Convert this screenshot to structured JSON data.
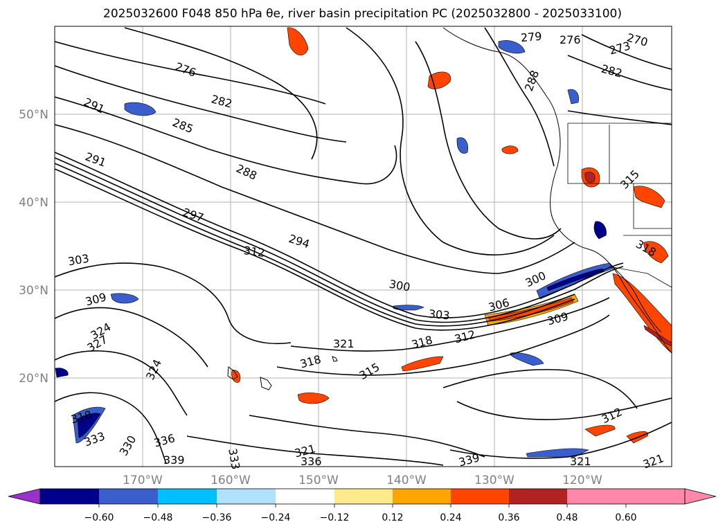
{
  "title": "2025032600 F048 850 hPa θe, river basin precipitation PC (2025032800 - 2025033100)",
  "lat_labels": [
    "50°N",
    "40°N",
    "30°N",
    "20°N"
  ],
  "lon_labels": [
    "170°W",
    "160°W",
    "150°W",
    "140°W",
    "130°W",
    "120°W"
  ],
  "contour_labels": [
    {
      "text": "276"
    },
    {
      "text": "279"
    },
    {
      "text": "276"
    },
    {
      "text": "273"
    },
    {
      "text": "270"
    },
    {
      "text": "282"
    },
    {
      "text": "288"
    },
    {
      "text": "291"
    },
    {
      "text": "285"
    },
    {
      "text": "282"
    },
    {
      "text": "291"
    },
    {
      "text": "288"
    },
    {
      "text": "297"
    },
    {
      "text": "294"
    },
    {
      "text": "312"
    },
    {
      "text": "303"
    },
    {
      "text": "300"
    },
    {
      "text": "300"
    },
    {
      "text": "309"
    },
    {
      "text": "306"
    },
    {
      "text": "303"
    },
    {
      "text": "309"
    },
    {
      "text": "321"
    },
    {
      "text": "318"
    },
    {
      "text": "312"
    },
    {
      "text": "324"
    },
    {
      "text": "327"
    },
    {
      "text": "318"
    },
    {
      "text": "315"
    },
    {
      "text": "324"
    },
    {
      "text": "315"
    },
    {
      "text": "318"
    },
    {
      "text": "318"
    },
    {
      "text": "333"
    },
    {
      "text": "330"
    },
    {
      "text": "336"
    },
    {
      "text": "339"
    },
    {
      "text": "333"
    },
    {
      "text": "321"
    },
    {
      "text": "336"
    },
    {
      "text": "339"
    },
    {
      "text": "312"
    },
    {
      "text": "321"
    },
    {
      "text": "321"
    }
  ],
  "colorbar": {
    "ticks": [
      "−0.60",
      "−0.48",
      "−0.36",
      "−0.24",
      "−0.12",
      "0.12",
      "0.24",
      "0.36",
      "0.48",
      "0.60"
    ],
    "colors": [
      "#9932cc",
      "#00008b",
      "#3a5fcd",
      "#00bfff",
      "#b0e2ff",
      "#ffffff",
      "#fdea8a",
      "#ffa500",
      "#ff4500",
      "#b22222",
      "#ff88aa",
      "#ff88aa"
    ]
  }
}
